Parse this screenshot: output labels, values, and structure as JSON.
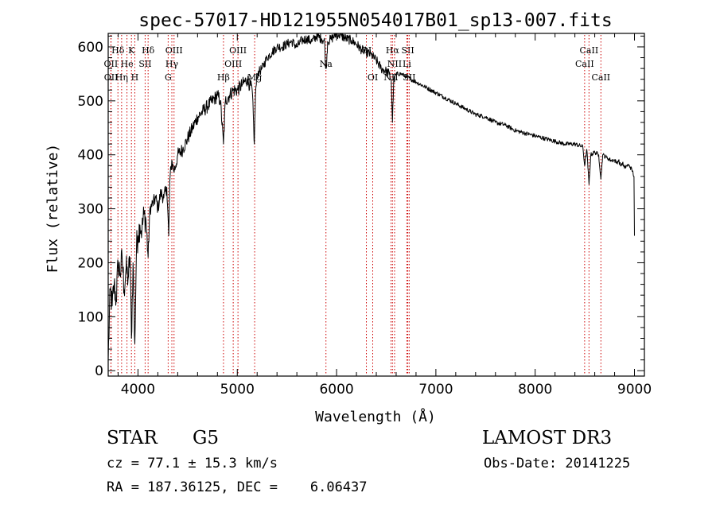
{
  "chart_data": {
    "type": "line",
    "title": "spec-57017-HD121955N054017B01_sp13-007.fits",
    "xlabel": "Wavelength (Å)",
    "ylabel": "Flux (relative)",
    "xlim": [
      3700,
      9100
    ],
    "ylim": [
      -10,
      625
    ],
    "grid": false,
    "xticks": [
      {
        "value": 4000,
        "label": "4000"
      },
      {
        "value": 5000,
        "label": "5000"
      },
      {
        "value": 6000,
        "label": "6000"
      },
      {
        "value": 7000,
        "label": "7000"
      },
      {
        "value": 8000,
        "label": "8000"
      },
      {
        "value": 9000,
        "label": "9000"
      }
    ],
    "yticks": [
      {
        "value": 0,
        "label": "0"
      },
      {
        "value": 100,
        "label": "100"
      },
      {
        "value": 200,
        "label": "200"
      },
      {
        "value": 300,
        "label": "300"
      },
      {
        "value": 400,
        "label": "400"
      },
      {
        "value": 500,
        "label": "500"
      },
      {
        "value": 600,
        "label": "600"
      }
    ],
    "series": [
      {
        "name": "flux",
        "x": [
          3700,
          3720,
          3740,
          3760,
          3780,
          3800,
          3820,
          3840,
          3860,
          3880,
          3900,
          3920,
          3934,
          3950,
          3968,
          3985,
          4000,
          4020,
          4040,
          4060,
          4080,
          4102,
          4120,
          4150,
          4180,
          4200,
          4230,
          4260,
          4290,
          4310,
          4320,
          4340,
          4360,
          4380,
          4400,
          4450,
          4500,
          4550,
          4600,
          4650,
          4700,
          4750,
          4800,
          4830,
          4861,
          4880,
          4920,
          4960,
          5000,
          5050,
          5100,
          5150,
          5172,
          5183,
          5200,
          5250,
          5300,
          5350,
          5400,
          5450,
          5500,
          5550,
          5600,
          5650,
          5700,
          5750,
          5800,
          5850,
          5880,
          5890,
          5896,
          5910,
          5950,
          6000,
          6050,
          6100,
          6150,
          6200,
          6250,
          6300,
          6350,
          6400,
          6450,
          6500,
          6530,
          6550,
          6563,
          6575,
          6600,
          6650,
          6700,
          6750,
          6800,
          6900,
          7000,
          7100,
          7200,
          7300,
          7400,
          7500,
          7600,
          7700,
          7800,
          7900,
          8000,
          8100,
          8200,
          8300,
          8400,
          8480,
          8498,
          8520,
          8542,
          8560,
          8600,
          8640,
          8662,
          8680,
          8720,
          8760,
          8800,
          8820,
          8840,
          8860,
          8880,
          8900,
          8920,
          8950,
          8980,
          8995,
          9000
        ],
        "y": [
          20,
          150,
          120,
          160,
          130,
          200,
          180,
          210,
          150,
          190,
          170,
          210,
          60,
          200,
          50,
          230,
          250,
          270,
          260,
          290,
          280,
          210,
          300,
          310,
          320,
          300,
          330,
          320,
          340,
          250,
          350,
          390,
          370,
          380,
          400,
          410,
          430,
          450,
          470,
          480,
          490,
          500,
          510,
          500,
          420,
          500,
          510,
          520,
          520,
          530,
          540,
          520,
          420,
          510,
          550,
          560,
          580,
          590,
          600,
          600,
          605,
          610,
          600,
          612,
          615,
          610,
          620,
          615,
          610,
          560,
          560,
          610,
          615,
          625,
          620,
          615,
          612,
          605,
          595,
          590,
          585,
          575,
          560,
          555,
          550,
          540,
          460,
          535,
          550,
          550,
          545,
          540,
          535,
          525,
          515,
          505,
          495,
          485,
          475,
          470,
          460,
          455,
          445,
          440,
          435,
          430,
          425,
          420,
          420,
          415,
          380,
          410,
          345,
          400,
          405,
          400,
          355,
          400,
          395,
          390,
          390,
          385,
          390,
          380,
          385,
          375,
          380,
          380,
          370,
          360,
          250
        ],
        "style": "solid-black"
      }
    ],
    "line_markers": [
      {
        "label": "Hδ",
        "wavelength": 3798,
        "row": 0
      },
      {
        "label": "OII",
        "wavelength": 3727,
        "row": 1
      },
      {
        "label": "OII",
        "wavelength": 3729,
        "row": 2
      },
      {
        "label": "He",
        "wavelength": 3889,
        "row": 1
      },
      {
        "label": "Hη",
        "wavelength": 3835,
        "row": 2
      },
      {
        "label": "K",
        "wavelength": 3934,
        "row": 0
      },
      {
        "label": "SII",
        "wavelength": 4072,
        "row": 1
      },
      {
        "label": "H",
        "wavelength": 3968,
        "row": 2
      },
      {
        "label": "Hδ",
        "wavelength": 4102,
        "row": 0
      },
      {
        "label": "OIII",
        "wavelength": 4363,
        "row": 0
      },
      {
        "label": "Hγ",
        "wavelength": 4341,
        "row": 1
      },
      {
        "label": "G",
        "wavelength": 4304,
        "row": 2
      },
      {
        "label": "OIII",
        "wavelength": 5007,
        "row": 0
      },
      {
        "label": "OIII",
        "wavelength": 4959,
        "row": 1
      },
      {
        "label": "Hβ",
        "wavelength": 4861,
        "row": 2
      },
      {
        "label": "Mg",
        "wavelength": 5175,
        "row": 2
      },
      {
        "label": "Na",
        "wavelength": 5893,
        "row": 1
      },
      {
        "label": "OI",
        "wavelength": 6300,
        "row": 0
      },
      {
        "label": "OI",
        "wavelength": 6364,
        "row": 2
      },
      {
        "label": "Hα",
        "wavelength": 6563,
        "row": 0
      },
      {
        "label": "SII",
        "wavelength": 6717,
        "row": 0
      },
      {
        "label": "NII",
        "wavelength": 6584,
        "row": 1
      },
      {
        "label": "Li",
        "wavelength": 6708,
        "row": 1
      },
      {
        "label": "NII",
        "wavelength": 6548,
        "row": 2
      },
      {
        "label": "SII",
        "wavelength": 6731,
        "row": 2
      },
      {
        "label": "CaII",
        "wavelength": 8542,
        "row": 0
      },
      {
        "label": "CaII",
        "wavelength": 8498,
        "row": 1
      },
      {
        "label": "CaII",
        "wavelength": 8662,
        "row": 2
      }
    ]
  },
  "info": {
    "class": "STAR",
    "subclass": "G5",
    "survey": "LAMOST DR3",
    "redshift": "cz = 77.1 ± 15.3 km/s",
    "obs_date": "Obs-Date: 20141225",
    "coords": "RA = 187.36125, DEC =    6.06437"
  },
  "colors": {
    "spectrum": "#000000",
    "marker": "#cc0000",
    "axis": "#000000"
  }
}
